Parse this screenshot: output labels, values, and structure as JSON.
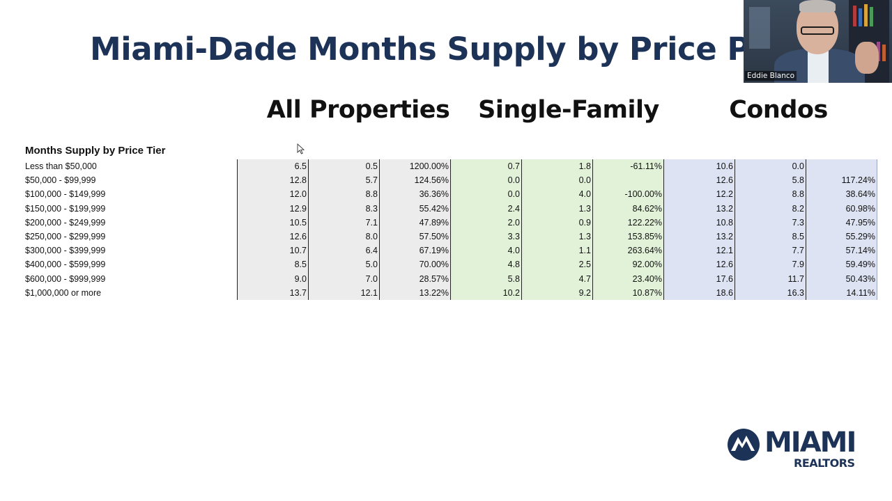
{
  "slide": {
    "title": "Miami-Dade Months Supply by Price Poi",
    "groups": [
      "All Properties",
      "Single-Family",
      "Condos"
    ],
    "table_title": "Months Supply by Price Tier"
  },
  "table": {
    "rows": [
      {
        "label": "Less than $50,000",
        "values": [
          "6.5",
          "0.5",
          "1200.00%",
          "0.7",
          "1.8",
          "-61.11%",
          "10.6",
          "0.0",
          ""
        ]
      },
      {
        "label": "$50,000 - $99,999",
        "values": [
          "12.8",
          "5.7",
          "124.56%",
          "0.0",
          "0.0",
          "",
          "12.6",
          "5.8",
          "117.24%"
        ]
      },
      {
        "label": "$100,000 - $149,999",
        "values": [
          "12.0",
          "8.8",
          "36.36%",
          "0.0",
          "4.0",
          "-100.00%",
          "12.2",
          "8.8",
          "38.64%"
        ]
      },
      {
        "label": "$150,000 - $199,999",
        "values": [
          "12.9",
          "8.3",
          "55.42%",
          "2.4",
          "1.3",
          "84.62%",
          "13.2",
          "8.2",
          "60.98%"
        ]
      },
      {
        "label": "$200,000 - $249,999",
        "values": [
          "10.5",
          "7.1",
          "47.89%",
          "2.0",
          "0.9",
          "122.22%",
          "10.8",
          "7.3",
          "47.95%"
        ]
      },
      {
        "label": "$250,000 - $299,999",
        "values": [
          "12.6",
          "8.0",
          "57.50%",
          "3.3",
          "1.3",
          "153.85%",
          "13.2",
          "8.5",
          "55.29%"
        ]
      },
      {
        "label": "$300,000 - $399,999",
        "values": [
          "10.7",
          "6.4",
          "67.19%",
          "4.0",
          "1.1",
          "263.64%",
          "12.1",
          "7.7",
          "57.14%"
        ]
      },
      {
        "label": "$400,000 - $599,999",
        "values": [
          "8.5",
          "5.0",
          "70.00%",
          "4.8",
          "2.5",
          "92.00%",
          "12.6",
          "7.9",
          "59.49%"
        ]
      },
      {
        "label": "$600,000 - $999,999",
        "values": [
          "9.0",
          "7.0",
          "28.57%",
          "5.8",
          "4.7",
          "23.40%",
          "17.6",
          "11.7",
          "50.43%"
        ]
      },
      {
        "label": "$1,000,000 or more",
        "values": [
          "13.7",
          "12.1",
          "13.22%",
          "10.2",
          "9.2",
          "10.87%",
          "18.6",
          "16.3",
          "14.11%"
        ]
      }
    ],
    "group_colors": [
      "#ececec",
      "#e2f2d8",
      "#dde3f3"
    ]
  },
  "webcam": {
    "participant_name": "Eddie Blanco"
  },
  "logo": {
    "word": "MIAMI",
    "sub": "REALTORS",
    "brand_color": "#1d3257"
  },
  "icons": [
    "mouse-cursor-icon",
    "miami-realtors-logo-icon"
  ]
}
